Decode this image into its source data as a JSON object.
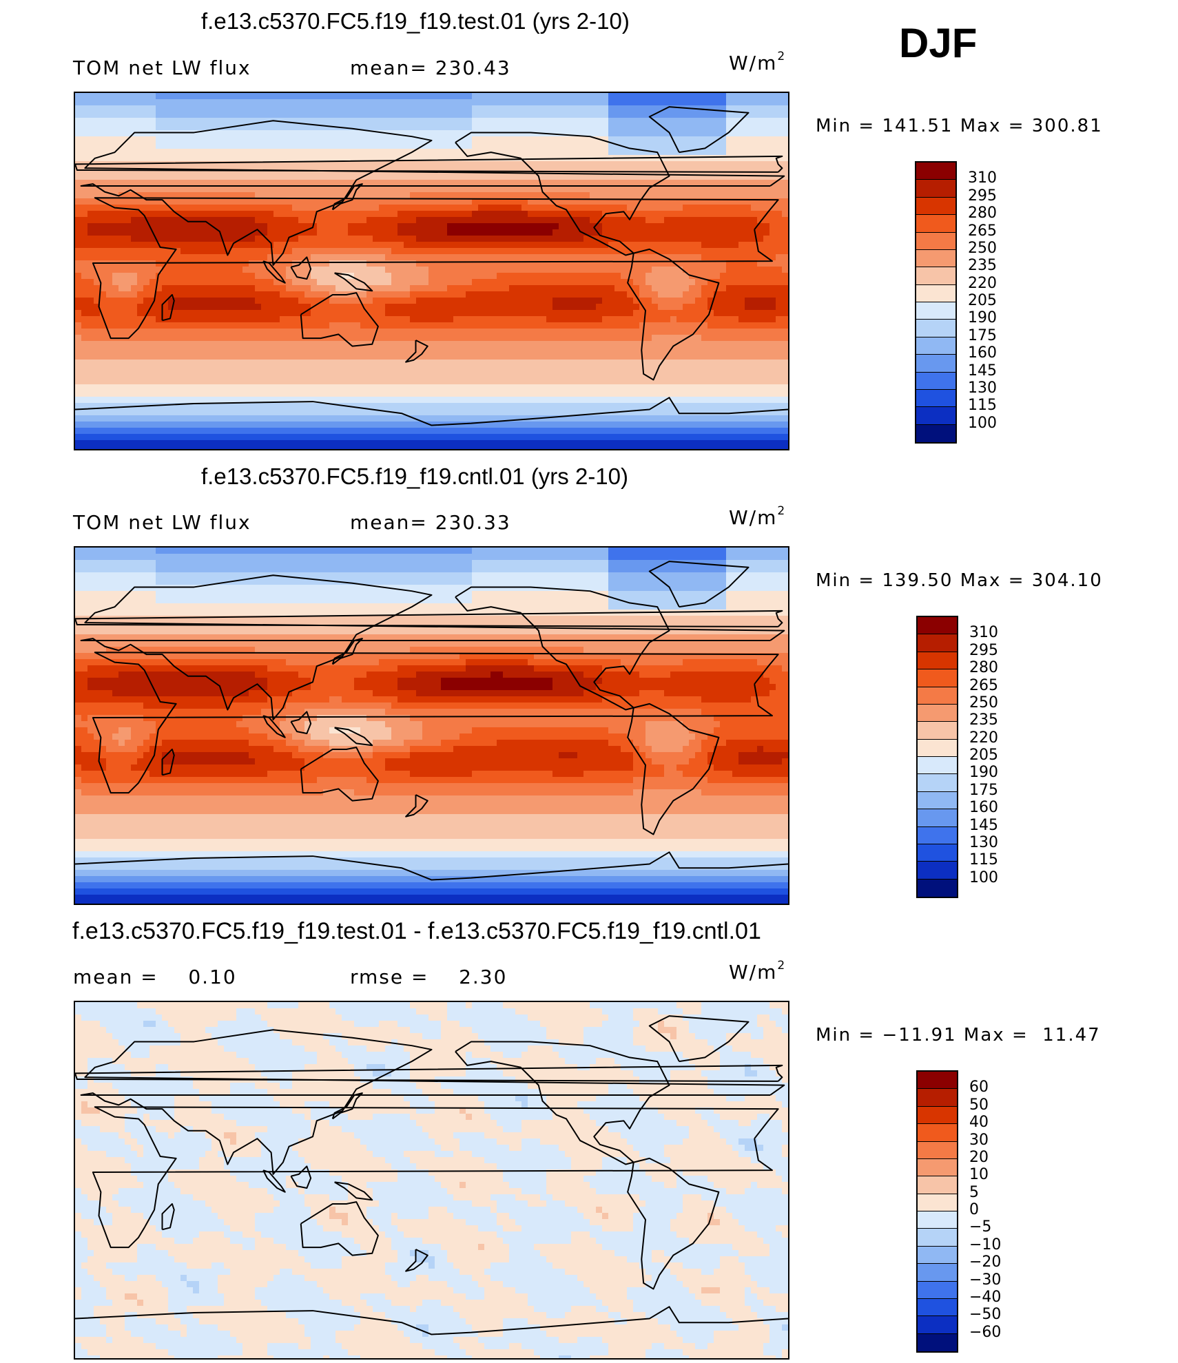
{
  "season": "DJF",
  "unit": {
    "base": "W/m",
    "exp": "2"
  },
  "chart_data": [
    {
      "type": "heatmap",
      "title": "f.e13.c5370.FC5.f19_f19.test.01 (yrs 2-10)",
      "left_label": "TOM net LW flux",
      "center_label": "mean= 230.43",
      "minmax": "Min = 141.51 Max = 300.81",
      "mean": 230.43,
      "min": 141.51,
      "max": 300.81,
      "colorbar_levels": [
        "310",
        "295",
        "280",
        "265",
        "250",
        "235",
        "220",
        "205",
        "190",
        "175",
        "160",
        "145",
        "130",
        "115",
        "100"
      ],
      "colorbar_colors": [
        "#8b0000",
        "#b61e00",
        "#d83500",
        "#f05a1d",
        "#f47a46",
        "#f59a70",
        "#f7c4a8",
        "#fbe4d2",
        "#d8e9fb",
        "#b5d3f7",
        "#90b8f3",
        "#6898ef",
        "#3f73ec",
        "#1f52e0",
        "#0c2fc2",
        "#00107c"
      ]
    },
    {
      "type": "heatmap",
      "title": "f.e13.c5370.FC5.f19_f19.cntl.01 (yrs 2-10)",
      "left_label": "TOM net LW flux",
      "center_label": "mean= 230.33",
      "minmax": "Min = 139.50 Max = 304.10",
      "mean": 230.33,
      "min": 139.5,
      "max": 304.1,
      "colorbar_levels": [
        "310",
        "295",
        "280",
        "265",
        "250",
        "235",
        "220",
        "205",
        "190",
        "175",
        "160",
        "145",
        "130",
        "115",
        "100"
      ],
      "colorbar_colors": [
        "#8b0000",
        "#b61e00",
        "#d83500",
        "#f05a1d",
        "#f47a46",
        "#f59a70",
        "#f7c4a8",
        "#fbe4d2",
        "#d8e9fb",
        "#b5d3f7",
        "#90b8f3",
        "#6898ef",
        "#3f73ec",
        "#1f52e0",
        "#0c2fc2",
        "#00107c"
      ]
    },
    {
      "type": "heatmap",
      "title": "f.e13.c5370.FC5.f19_f19.test.01 - f.e13.c5370.FC5.f19_f19.cntl.01",
      "left_label": "mean =    0.10",
      "center_label": "rmse =    2.30",
      "minmax": "Min = −11.91 Max =  11.47",
      "mean": 0.1,
      "rmse": 2.3,
      "min": -11.91,
      "max": 11.47,
      "colorbar_levels": [
        "60",
        "50",
        "40",
        "30",
        "20",
        "10",
        "5",
        "0",
        "−5",
        "−10",
        "−20",
        "−30",
        "−40",
        "−50",
        "−60"
      ],
      "colorbar_colors": [
        "#8b0000",
        "#b61e00",
        "#d83500",
        "#f05a1d",
        "#f47a46",
        "#f59a70",
        "#f7c4a8",
        "#fbe4d2",
        "#d8e9fb",
        "#b5d3f7",
        "#90b8f3",
        "#6898ef",
        "#3f73ec",
        "#1f52e0",
        "#0c2fc2",
        "#00107c"
      ]
    }
  ]
}
